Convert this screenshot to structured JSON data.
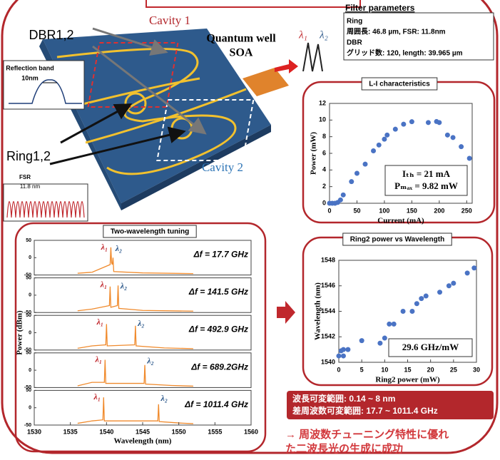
{
  "chart_data": [
    {
      "type": "scatter",
      "title": "L-I characteristics",
      "xlabel": "Current (mA)",
      "ylabel": "Power (mW)",
      "color": "#4a73c4",
      "x": [
        0,
        5,
        10,
        15,
        20,
        25,
        40,
        50,
        65,
        80,
        90,
        100,
        105,
        120,
        135,
        150,
        180,
        195,
        200,
        215,
        225,
        240,
        255
      ],
      "values": [
        0,
        0,
        0,
        0.1,
        0.4,
        1,
        2.6,
        3.6,
        4.7,
        6.3,
        7,
        7.7,
        8.2,
        8.9,
        9.5,
        9.8,
        9.7,
        9.82,
        9.7,
        8.2,
        7.9,
        6.8,
        5.4
      ],
      "xlim": [
        0,
        260
      ],
      "xticks": [
        0,
        50,
        100,
        150,
        200,
        250
      ],
      "ylim": [
        0,
        12
      ],
      "yticks": [
        0,
        2,
        4,
        6,
        8,
        10,
        12
      ],
      "annotations": [
        "Iₜₕ = 21 mA",
        "Pₘₐₓ = 9.82 mW"
      ]
    },
    {
      "type": "scatter",
      "title": "Ring2 power vs Wavelength",
      "xlabel": "Ring2 power (mW)",
      "ylabel": "Wavelength (nm)",
      "color": "#4a73c4",
      "x": [
        0,
        0.5,
        1,
        1,
        2,
        5,
        9,
        10,
        11,
        12,
        14,
        16,
        17,
        18,
        19,
        22,
        24,
        25,
        28,
        29.5
      ],
      "values": [
        1540.5,
        1540.9,
        1541,
        1540.5,
        1541,
        1541.7,
        1541.5,
        1541.9,
        1543,
        1543,
        1544,
        1544,
        1544.6,
        1545,
        1545.2,
        1545.5,
        1546,
        1546.2,
        1547,
        1547.4
      ],
      "xlim": [
        0,
        30
      ],
      "xticks": [
        0,
        5,
        10,
        15,
        20,
        25,
        30
      ],
      "ylim": [
        1540,
        1548
      ],
      "yticks": [
        1540,
        1542,
        1544,
        1546,
        1548
      ],
      "annotations": [
        "29.6 GHz/mW"
      ]
    },
    {
      "type": "line",
      "title": "Two-wavelength tuning",
      "xlabel": "Wavelength (nm)",
      "ylabel": "Power (dBm)",
      "color": "#f08a2c",
      "xlim": [
        1530,
        1560
      ],
      "xticks": [
        1530,
        1535,
        1540,
        1545,
        1550,
        1555,
        1560
      ],
      "ylim": [
        -50,
        50
      ],
      "yticks": [
        -50,
        0,
        50
      ],
      "peak_labels": [
        "λ₁",
        "λ₂"
      ],
      "series": [
        {
          "annotation": "Δf = 17.7 GHz",
          "x": [
            1536,
            1538,
            1540.5,
            1540.6,
            1540.7,
            1540.8,
            1540.9,
            1541,
            1545,
            1552
          ],
          "values": [
            -45,
            -42,
            -20,
            30,
            -15,
            -20,
            0,
            -40,
            -44,
            -46
          ]
        },
        {
          "annotation": "Δf = 141.5 GHz",
          "x": [
            1536,
            1538,
            1540.4,
            1540.5,
            1540.6,
            1541.5,
            1541.6,
            1541.7,
            1545,
            1552
          ],
          "values": [
            -45,
            -40,
            -30,
            25,
            -35,
            -30,
            28,
            -38,
            -44,
            -46
          ]
        },
        {
          "annotation": "Δf = 492.9 GHz",
          "x": [
            1536,
            1538,
            1539.9,
            1540,
            1540.1,
            1543.9,
            1544,
            1544.1,
            1548,
            1552
          ],
          "values": [
            -45,
            -38,
            -35,
            25,
            -38,
            -35,
            20,
            -38,
            -44,
            -46
          ]
        },
        {
          "annotation": "Δf = 689.2GHz",
          "x": [
            1536,
            1538,
            1539.7,
            1539.8,
            1539.9,
            1545.2,
            1545.3,
            1545.4,
            1549,
            1552
          ],
          "values": [
            -45,
            -35,
            -35,
            30,
            -38,
            -38,
            15,
            -40,
            -44,
            -46
          ]
        },
        {
          "annotation": "Δf = 1011.4 GHz",
          "x": [
            1536,
            1538,
            1539.5,
            1539.6,
            1539.7,
            1547.1,
            1547.2,
            1547.3,
            1550,
            1552
          ],
          "values": [
            -45,
            -38,
            -35,
            30,
            -38,
            -38,
            10,
            -40,
            -44,
            -46
          ]
        }
      ]
    }
  ],
  "diagram": {
    "cavity1": "Cavity 1",
    "cavity2": "Cavity 2",
    "dbr": "DBR1,2",
    "ring": "Ring1,2",
    "soa": [
      "Quantum well",
      "SOA"
    ],
    "reflection": [
      "Reflection band",
      "10nm"
    ],
    "fsr": [
      "FSR",
      "11.8 nm"
    ],
    "lambdas": [
      "λ₁",
      "λ₂"
    ]
  },
  "filter_parameters": {
    "title": "Filter parameters",
    "lines": [
      "Ring",
      "周囲長: 46.8 µm, FSR: 11.8nm",
      "DBR",
      "グリッド数: 120, length: 39.965 µm"
    ]
  },
  "summary": [
    "波長可変範囲: 0.14 ~ 8 nm",
    "差周波数可変範囲: 17.7 ~ 1011.4 GHz"
  ],
  "conclusion": [
    "→ 周波数チューニング特性に優れ",
    "た二波長光の生成に成功"
  ]
}
